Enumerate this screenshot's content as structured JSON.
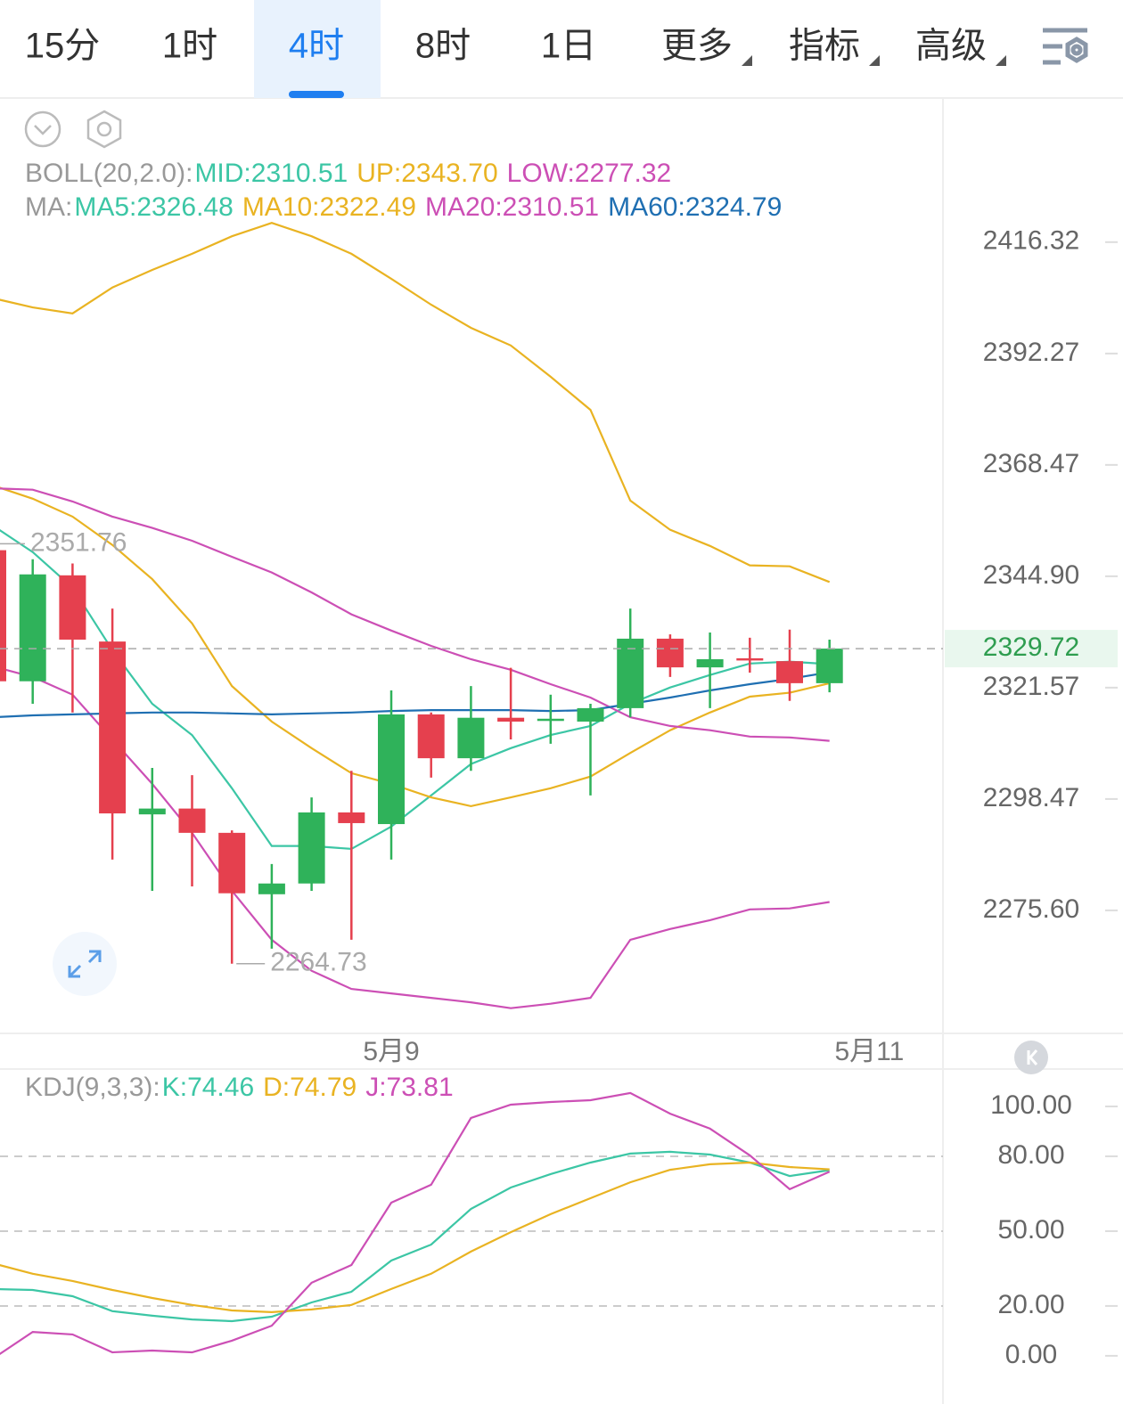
{
  "tabs": [
    {
      "label": "15分"
    },
    {
      "label": "1时"
    },
    {
      "label": "4时",
      "selected": true
    },
    {
      "label": "8时"
    },
    {
      "label": "1日"
    },
    {
      "label": "更多",
      "dropdown": true
    },
    {
      "label": "指标",
      "dropdown": true
    },
    {
      "label": "高级",
      "dropdown": true
    }
  ],
  "chart_data": [
    {
      "type": "candlestick",
      "log_scale": true,
      "ylim": [
        2250.6,
        2447.8
      ],
      "yticks": [
        2416.32,
        2392.27,
        2368.47,
        {
          "value": 2344.9,
          "label": "2344.90"
        },
        2321.57,
        2298.47,
        {
          "value": 2275.6,
          "label": "2275.60"
        }
      ],
      "legend": [
        {
          "title": "BOLL(20,2.0):",
          "items": [
            {
              "text": "MID:2310.51",
              "color": "#3cc6a5"
            },
            {
              "text": "UP:2343.70",
              "color": "#e9b322"
            },
            {
              "text": "LOW:2277.32",
              "color": "#cc4fb5"
            }
          ]
        },
        {
          "title": "MA:",
          "items": [
            {
              "text": "MA5:2326.48",
              "color": "#3cc6a5"
            },
            {
              "text": "MA10:2322.49",
              "color": "#e9b322"
            },
            {
              "text": "MA20:2310.51",
              "color": "#cc4fb5"
            },
            {
              "text": "MA60:2324.79",
              "color": "#1f6fb2"
            }
          ]
        }
      ],
      "x_labels": [
        {
          "index": 10,
          "label": "5月9"
        },
        {
          "index": 22,
          "label": "5月11"
        }
      ],
      "up_color": "#2fb25a",
      "down_color": "#e5404e",
      "candles": {
        "open": [
          2350.4,
          2322.9,
          2345.1,
          2331.2,
          2295.3,
          2296.5,
          2291.5,
          2278.9,
          2281.1,
          2295.7,
          2293.3,
          2316.0,
          2306.9,
          2315.3,
          2314.7,
          2314.5,
          2317.3,
          2331.8,
          2325.8,
          2327.7,
          2327.1,
          2322.5
        ],
        "high": [
          2351.76,
          2348.5,
          2347.6,
          2338.1,
          2304.9,
          2303.4,
          2292.0,
          2285.1,
          2298.8,
          2304.3,
          2321.0,
          2316.4,
          2321.9,
          2325.7,
          2320.1,
          2318.2,
          2338.1,
          2332.7,
          2333.1,
          2332.0,
          2333.7,
          2331.6
        ],
        "low": [
          2321.9,
          2318.2,
          2316.4,
          2286.0,
          2279.6,
          2280.5,
          2264.73,
          2267.8,
          2279.6,
          2269.6,
          2286.0,
          2302.9,
          2304.3,
          2310.8,
          2309.9,
          2299.2,
          2315.4,
          2323.8,
          2317.3,
          2324.7,
          2318.8,
          2320.6
        ],
        "close": [
          2322.9,
          2345.3,
          2331.6,
          2295.5,
          2296.5,
          2291.5,
          2279.1,
          2281.1,
          2295.7,
          2293.5,
          2316.0,
          2306.9,
          2315.3,
          2314.5,
          2315.1,
          2317.3,
          2331.8,
          2325.8,
          2327.5,
          2327.3,
          2322.5,
          2329.72
        ]
      },
      "series": [
        {
          "name": "UP",
          "color": "#e9b322",
          "values": [
            2404.2,
            2402.2,
            2400.9,
            2406.5,
            2410.3,
            2413.8,
            2417.6,
            2420.5,
            2417.6,
            2413.8,
            2408.4,
            2402.8,
            2397.8,
            2394.0,
            2387.3,
            2380.2,
            2360.9,
            2354.7,
            2351.3,
            2347.2,
            2347.0,
            2343.7
          ]
        },
        {
          "name": "LOW",
          "color": "#cc4fb5",
          "values": [
            2326.0,
            2323.8,
            2320.1,
            2310.8,
            2301.6,
            2291.5,
            2279.6,
            2269.6,
            2263.3,
            2259.6,
            2258.7,
            2257.8,
            2256.9,
            2255.7,
            2256.6,
            2257.8,
            2269.6,
            2271.8,
            2273.6,
            2275.8,
            2276.0,
            2277.32
          ]
        },
        {
          "name": "MA5",
          "color": "#3cc6a5",
          "values": [
            2355.6,
            2350.0,
            2342.5,
            2329.4,
            2318.2,
            2311.7,
            2300.7,
            2288.8,
            2288.8,
            2288.2,
            2292.8,
            2299.2,
            2305.7,
            2309.0,
            2311.7,
            2313.6,
            2318.2,
            2321.6,
            2324.2,
            2326.6,
            2327.0,
            2326.48
          ]
        },
        {
          "name": "MA10",
          "color": "#e9b322",
          "values": [
            2364.1,
            2361.3,
            2357.5,
            2351.5,
            2344.3,
            2335.0,
            2321.9,
            2314.5,
            2309.0,
            2303.8,
            2301.6,
            2298.8,
            2297.0,
            2298.8,
            2300.7,
            2303.1,
            2308.0,
            2312.7,
            2316.4,
            2319.7,
            2320.5,
            2322.49
          ]
        },
        {
          "name": "MA20",
          "color": "#cc4fb5",
          "values": [
            2363.5,
            2363.2,
            2360.7,
            2357.5,
            2355.1,
            2352.4,
            2349.0,
            2345.7,
            2341.5,
            2336.9,
            2333.5,
            2330.3,
            2327.5,
            2325.3,
            2322.3,
            2319.5,
            2315.4,
            2313.6,
            2312.7,
            2311.4,
            2311.2,
            2310.51
          ]
        },
        {
          "name": "MA60",
          "color": "#1f6fb2",
          "values": [
            2315.4,
            2315.8,
            2316.0,
            2316.2,
            2316.4,
            2316.4,
            2316.2,
            2316.0,
            2316.2,
            2316.4,
            2316.7,
            2316.9,
            2316.9,
            2316.9,
            2316.7,
            2316.9,
            2318.2,
            2319.5,
            2321.0,
            2322.3,
            2323.4,
            2324.79
          ]
        }
      ],
      "current_price": {
        "value": 2329.72,
        "color": "#2e9d4f"
      },
      "max_marker": {
        "index": 0,
        "value": 2351.76
      },
      "min_marker": {
        "index": 6,
        "value": 2264.73
      }
    },
    {
      "type": "line",
      "title": "KDJ(9,3,3):",
      "legend_items": [
        {
          "text": "K:74.46",
          "color": "#3cc6a5"
        },
        {
          "text": "D:74.79",
          "color": "#e9b322"
        },
        {
          "text": "J:73.81",
          "color": "#cc4fb5"
        }
      ],
      "ylim": [
        -13.6,
        115
      ],
      "yticks": [
        {
          "value": 100,
          "label": "100.00"
        },
        {
          "value": 80,
          "label": "80.00"
        },
        {
          "value": 50,
          "label": "50.00"
        },
        {
          "value": 20,
          "label": "20.00"
        },
        {
          "value": 0,
          "label": "0.00"
        }
      ],
      "series": [
        {
          "name": "K",
          "color": "#3cc6a5",
          "values": [
            26.8,
            26.4,
            23.9,
            17.9,
            16.1,
            14.6,
            13.9,
            15.7,
            21.4,
            25.7,
            38.2,
            44.6,
            58.9,
            67.5,
            72.9,
            77.5,
            81.1,
            81.8,
            80.7,
            77.5,
            72.1,
            74.46
          ]
        },
        {
          "name": "D",
          "color": "#e9b322",
          "values": [
            37.1,
            32.9,
            30.0,
            26.4,
            23.2,
            20.4,
            18.2,
            17.5,
            18.6,
            20.4,
            26.8,
            32.9,
            41.8,
            49.6,
            56.8,
            63.2,
            69.6,
            74.6,
            76.8,
            77.5,
            75.7,
            74.79
          ]
        },
        {
          "name": "J",
          "color": "#cc4fb5",
          "values": [
            -1.1,
            9.6,
            8.6,
            1.4,
            2.1,
            1.4,
            6.1,
            12.1,
            29.3,
            36.4,
            61.4,
            68.6,
            95.4,
            100.7,
            101.8,
            102.5,
            105.4,
            97.1,
            91.1,
            80.4,
            66.8,
            73.81
          ]
        }
      ]
    }
  ]
}
